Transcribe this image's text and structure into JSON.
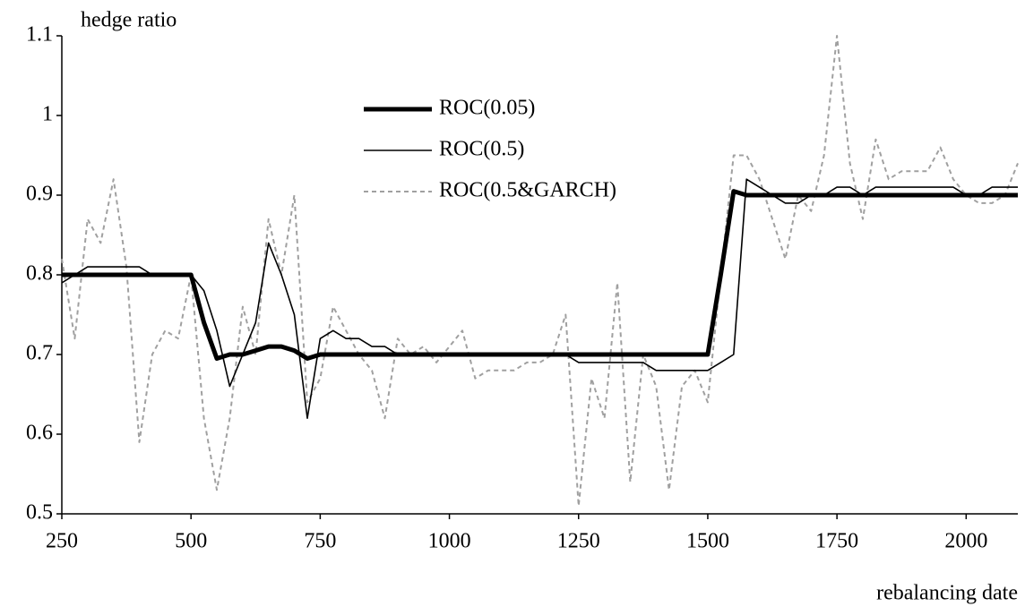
{
  "chart_data": {
    "type": "line",
    "y_label": "hedge ratio",
    "x_label": "rebalancing date",
    "x": [
      250,
      275,
      300,
      325,
      350,
      375,
      400,
      425,
      450,
      475,
      500,
      525,
      550,
      575,
      600,
      625,
      650,
      675,
      700,
      725,
      750,
      775,
      800,
      825,
      850,
      875,
      900,
      925,
      950,
      975,
      1000,
      1025,
      1050,
      1075,
      1100,
      1125,
      1150,
      1175,
      1200,
      1225,
      1250,
      1275,
      1300,
      1325,
      1350,
      1375,
      1400,
      1425,
      1450,
      1475,
      1500,
      1525,
      1550,
      1575,
      1600,
      1625,
      1650,
      1675,
      1700,
      1725,
      1750,
      1775,
      1800,
      1825,
      1850,
      1875,
      1900,
      1925,
      1950,
      1975,
      2000,
      2025,
      2050,
      2075,
      2100
    ],
    "series": [
      {
        "name": "ROC(0.05)",
        "color": "#000000",
        "values": [
          0.8,
          0.8,
          0.8,
          0.8,
          0.8,
          0.8,
          0.8,
          0.8,
          0.8,
          0.8,
          0.8,
          0.74,
          0.695,
          0.7,
          0.7,
          0.705,
          0.71,
          0.71,
          0.705,
          0.695,
          0.7,
          0.7,
          0.7,
          0.7,
          0.7,
          0.7,
          0.7,
          0.7,
          0.7,
          0.7,
          0.7,
          0.7,
          0.7,
          0.7,
          0.7,
          0.7,
          0.7,
          0.7,
          0.7,
          0.7,
          0.7,
          0.7,
          0.7,
          0.7,
          0.7,
          0.7,
          0.7,
          0.7,
          0.7,
          0.7,
          0.7,
          0.8,
          0.905,
          0.9,
          0.9,
          0.9,
          0.9,
          0.9,
          0.9,
          0.9,
          0.9,
          0.9,
          0.9,
          0.9,
          0.9,
          0.9,
          0.9,
          0.9,
          0.9,
          0.9,
          0.9,
          0.9,
          0.9,
          0.9,
          0.9
        ]
      },
      {
        "name": "ROC(0.5)",
        "color": "#000000",
        "values": [
          0.79,
          0.8,
          0.81,
          0.81,
          0.81,
          0.81,
          0.81,
          0.8,
          0.8,
          0.8,
          0.8,
          0.78,
          0.73,
          0.66,
          0.7,
          0.74,
          0.84,
          0.8,
          0.75,
          0.62,
          0.72,
          0.73,
          0.72,
          0.72,
          0.71,
          0.71,
          0.7,
          0.7,
          0.7,
          0.7,
          0.7,
          0.7,
          0.7,
          0.7,
          0.7,
          0.7,
          0.7,
          0.7,
          0.7,
          0.7,
          0.69,
          0.69,
          0.69,
          0.69,
          0.69,
          0.69,
          0.68,
          0.68,
          0.68,
          0.68,
          0.68,
          0.69,
          0.7,
          0.92,
          0.91,
          0.9,
          0.89,
          0.89,
          0.9,
          0.9,
          0.91,
          0.91,
          0.9,
          0.91,
          0.91,
          0.91,
          0.91,
          0.91,
          0.91,
          0.91,
          0.9,
          0.9,
          0.91,
          0.91,
          0.91
        ]
      },
      {
        "name": "ROC(0.5&GARCH)",
        "color": "#a0a0a0",
        "values": [
          0.82,
          0.72,
          0.87,
          0.84,
          0.92,
          0.81,
          0.59,
          0.7,
          0.73,
          0.72,
          0.8,
          0.62,
          0.53,
          0.62,
          0.76,
          0.7,
          0.87,
          0.8,
          0.9,
          0.64,
          0.67,
          0.76,
          0.73,
          0.7,
          0.68,
          0.62,
          0.72,
          0.7,
          0.71,
          0.69,
          0.71,
          0.73,
          0.67,
          0.68,
          0.68,
          0.68,
          0.69,
          0.69,
          0.7,
          0.75,
          0.51,
          0.67,
          0.62,
          0.79,
          0.54,
          0.7,
          0.66,
          0.53,
          0.66,
          0.68,
          0.64,
          0.8,
          0.95,
          0.95,
          0.92,
          0.87,
          0.82,
          0.9,
          0.88,
          0.95,
          1.1,
          0.94,
          0.87,
          0.97,
          0.92,
          0.93,
          0.93,
          0.93,
          0.96,
          0.92,
          0.9,
          0.89,
          0.89,
          0.9,
          0.94
        ]
      }
    ],
    "xlim": [
      250,
      2100
    ],
    "xticks": [
      250,
      500,
      750,
      1000,
      1250,
      1500,
      1750,
      2000
    ],
    "ylim": [
      0.5,
      1.1
    ],
    "yticks": [
      0.5,
      0.6,
      0.7,
      0.8,
      0.9,
      1,
      1.1
    ],
    "grid": false
  }
}
